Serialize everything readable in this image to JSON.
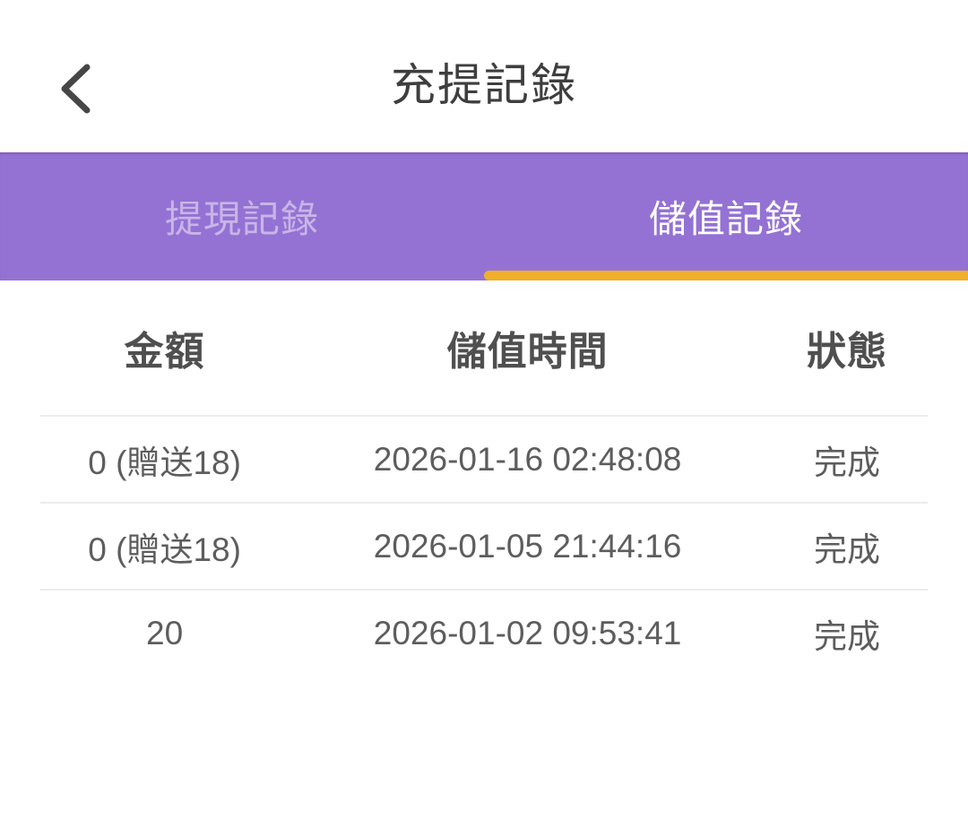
{
  "header": {
    "title": "充提記錄",
    "back_icon": "chevron-left"
  },
  "tabs": [
    {
      "id": "withdraw-records",
      "label": "提現記錄",
      "active": false
    },
    {
      "id": "deposit-records",
      "label": "儲值記錄",
      "active": true
    }
  ],
  "table": {
    "columns": [
      {
        "key": "amount",
        "label": "金額"
      },
      {
        "key": "time",
        "label": "儲值時間"
      },
      {
        "key": "status",
        "label": "狀態"
      }
    ],
    "rows": [
      {
        "amount": "0 (贈送18)",
        "time": "2026-01-16 02:48:08",
        "status": "完成"
      },
      {
        "amount": "0 (贈送18)",
        "time": "2026-01-05 21:44:16",
        "status": "完成"
      },
      {
        "amount": "20",
        "time": "2026-01-02 09:53:41",
        "status": "完成"
      }
    ]
  },
  "colors": {
    "tab_bar_background": "#9472d4",
    "active_tab_indicator": "#efaf2a",
    "active_tab_text": "#ffffff",
    "inactive_tab_text": "#c8b5e7",
    "title_text": "#3e3e3e",
    "table_header_text": "#4f4f4f",
    "cell_text": "#5d5d5d",
    "divider": "#ececec"
  }
}
